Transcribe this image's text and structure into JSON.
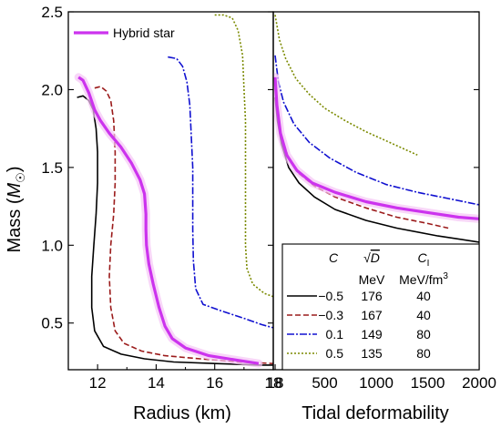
{
  "colors": {
    "hybrid": "#cc33ee",
    "hybrid_band": "#f5c4f5",
    "black": "#000000",
    "red": "#9b1b1b",
    "blue": "#1010d0",
    "olive": "#7b8a00"
  },
  "chart_data": [
    {
      "type": "line",
      "panel": "left",
      "xlabel": "Radius (km)",
      "ylabel_prefix": "Mass (",
      "ylabel_symbol": "M",
      "ylabel_subscript": "☉",
      "ylabel_suffix": ")",
      "xlim": [
        11,
        18
      ],
      "ylim": [
        0.2,
        2.5
      ],
      "xticks": [
        12,
        14,
        16,
        18
      ],
      "yticks": [
        0.5,
        1.0,
        1.5,
        2.0,
        2.5
      ],
      "ytick_labels": [
        "0.5",
        "1.0",
        "1.5",
        "2.0",
        "2.5"
      ],
      "legend": {
        "label": "Hybrid star",
        "position": "top-left"
      },
      "series": [
        {
          "key": "c-05",
          "color": "black",
          "dash": "",
          "width": 1.6,
          "points": [
            [
              11.3,
              1.95
            ],
            [
              11.5,
              1.96
            ],
            [
              11.7,
              1.93
            ],
            [
              11.85,
              1.87
            ],
            [
              11.95,
              1.75
            ],
            [
              12.0,
              1.6
            ],
            [
              12.0,
              1.4
            ],
            [
              11.95,
              1.2
            ],
            [
              11.87,
              1.0
            ],
            [
              11.8,
              0.8
            ],
            [
              11.8,
              0.6
            ],
            [
              11.9,
              0.45
            ],
            [
              12.2,
              0.35
            ],
            [
              12.8,
              0.3
            ],
            [
              13.6,
              0.27
            ],
            [
              14.6,
              0.25
            ],
            [
              16.0,
              0.24
            ],
            [
              17.5,
              0.23
            ],
            [
              18.0,
              0.23
            ]
          ]
        },
        {
          "key": "c-03",
          "color": "red",
          "dash": "6 3",
          "width": 1.6,
          "points": [
            [
              11.9,
              2.01
            ],
            [
              12.1,
              2.02
            ],
            [
              12.3,
              1.99
            ],
            [
              12.45,
              1.93
            ],
            [
              12.55,
              1.8
            ],
            [
              12.6,
              1.6
            ],
            [
              12.6,
              1.4
            ],
            [
              12.55,
              1.2
            ],
            [
              12.45,
              1.0
            ],
            [
              12.4,
              0.8
            ],
            [
              12.45,
              0.6
            ],
            [
              12.6,
              0.45
            ],
            [
              12.9,
              0.37
            ],
            [
              13.5,
              0.32
            ],
            [
              14.3,
              0.29
            ],
            [
              15.5,
              0.27
            ],
            [
              16.8,
              0.25
            ],
            [
              18.0,
              0.24
            ]
          ]
        },
        {
          "key": "c01",
          "color": "blue",
          "dash": "8 2 2 2",
          "width": 1.6,
          "points": [
            [
              14.4,
              2.21
            ],
            [
              14.7,
              2.2
            ],
            [
              14.9,
              2.15
            ],
            [
              15.05,
              2.05
            ],
            [
              15.15,
              1.9
            ],
            [
              15.2,
              1.7
            ],
            [
              15.25,
              1.5
            ],
            [
              15.25,
              1.3
            ],
            [
              15.25,
              1.1
            ],
            [
              15.27,
              0.9
            ],
            [
              15.35,
              0.72
            ],
            [
              15.6,
              0.62
            ],
            [
              16.2,
              0.58
            ],
            [
              17.0,
              0.53
            ],
            [
              17.6,
              0.49
            ],
            [
              18.0,
              0.47
            ]
          ]
        },
        {
          "key": "c05",
          "color": "olive",
          "dash": "2 2",
          "width": 1.6,
          "points": [
            [
              16.0,
              2.48
            ],
            [
              16.3,
              2.48
            ],
            [
              16.6,
              2.46
            ],
            [
              16.8,
              2.38
            ],
            [
              16.95,
              2.22
            ],
            [
              17.0,
              2.0
            ],
            [
              17.05,
              1.8
            ],
            [
              17.05,
              1.6
            ],
            [
              17.05,
              1.4
            ],
            [
              17.05,
              1.2
            ],
            [
              17.05,
              1.0
            ],
            [
              17.1,
              0.85
            ],
            [
              17.3,
              0.75
            ],
            [
              17.7,
              0.69
            ],
            [
              18.0,
              0.67
            ]
          ]
        },
        {
          "key": "hybrid",
          "color": "hybrid",
          "dash": "",
          "width": 3.2,
          "band": true,
          "points": [
            [
              11.35,
              2.08
            ],
            [
              11.5,
              2.06
            ],
            [
              11.7,
              1.98
            ],
            [
              11.9,
              1.87
            ],
            [
              12.1,
              1.8
            ],
            [
              12.4,
              1.72
            ],
            [
              12.8,
              1.63
            ],
            [
              13.15,
              1.53
            ],
            [
              13.45,
              1.42
            ],
            [
              13.6,
              1.33
            ],
            [
              13.65,
              1.2
            ],
            [
              13.65,
              1.1
            ],
            [
              13.67,
              1.0
            ],
            [
              13.75,
              0.88
            ],
            [
              13.9,
              0.75
            ],
            [
              14.1,
              0.6
            ],
            [
              14.3,
              0.48
            ],
            [
              14.55,
              0.4
            ],
            [
              15.0,
              0.34
            ],
            [
              15.8,
              0.29
            ],
            [
              16.8,
              0.26
            ],
            [
              17.5,
              0.24
            ]
          ]
        }
      ]
    },
    {
      "type": "line",
      "panel": "right",
      "xlabel": "Tidal deformability",
      "xlim": [
        0,
        2000
      ],
      "ylim": [
        0.2,
        2.5
      ],
      "xticks": [
        18,
        500,
        1000,
        1500,
        2000
      ],
      "xtick_labels": [
        "18",
        "500",
        "1000",
        "1500",
        "2000"
      ],
      "series": [
        {
          "key": "c-05",
          "color": "black",
          "dash": "",
          "width": 1.6,
          "points": [
            [
              18,
              1.95
            ],
            [
              40,
              1.8
            ],
            [
              80,
              1.65
            ],
            [
              150,
              1.5
            ],
            [
              250,
              1.4
            ],
            [
              400,
              1.31
            ],
            [
              600,
              1.23
            ],
            [
              900,
              1.16
            ],
            [
              1200,
              1.11
            ],
            [
              1600,
              1.06
            ],
            [
              2000,
              1.02
            ]
          ]
        },
        {
          "key": "c-03",
          "color": "red",
          "dash": "6 3",
          "width": 1.6,
          "points": [
            [
              18,
              2.01
            ],
            [
              40,
              1.85
            ],
            [
              80,
              1.7
            ],
            [
              150,
              1.56
            ],
            [
              250,
              1.46
            ],
            [
              400,
              1.38
            ],
            [
              600,
              1.31
            ],
            [
              900,
              1.24
            ],
            [
              1200,
              1.18
            ],
            [
              1500,
              1.14
            ],
            [
              1700,
              1.11
            ]
          ]
        },
        {
          "key": "c01",
          "color": "blue",
          "dash": "8 2 2 2",
          "width": 1.6,
          "points": [
            [
              18,
              2.22
            ],
            [
              50,
              2.05
            ],
            [
              100,
              1.92
            ],
            [
              200,
              1.78
            ],
            [
              350,
              1.66
            ],
            [
              550,
              1.56
            ],
            [
              800,
              1.47
            ],
            [
              1100,
              1.39
            ],
            [
              1400,
              1.34
            ],
            [
              1700,
              1.3
            ],
            [
              2000,
              1.26
            ]
          ]
        },
        {
          "key": "c05",
          "color": "olive",
          "dash": "2 2",
          "width": 1.6,
          "points": [
            [
              18,
              2.48
            ],
            [
              60,
              2.32
            ],
            [
              120,
              2.2
            ],
            [
              220,
              2.07
            ],
            [
              350,
              1.97
            ],
            [
              500,
              1.88
            ],
            [
              700,
              1.8
            ],
            [
              900,
              1.73
            ],
            [
              1100,
              1.67
            ],
            [
              1300,
              1.61
            ],
            [
              1400,
              1.58
            ]
          ]
        },
        {
          "key": "hybrid",
          "color": "hybrid",
          "dash": "",
          "width": 3.2,
          "band": true,
          "points": [
            [
              18,
              2.08
            ],
            [
              35,
              1.9
            ],
            [
              70,
              1.72
            ],
            [
              130,
              1.58
            ],
            [
              230,
              1.48
            ],
            [
              380,
              1.4
            ],
            [
              600,
              1.34
            ],
            [
              900,
              1.28
            ],
            [
              1200,
              1.24
            ],
            [
              1500,
              1.21
            ],
            [
              1800,
              1.18
            ],
            [
              2000,
              1.17
            ]
          ]
        }
      ]
    }
  ],
  "table": {
    "headers": {
      "c": "C",
      "d_prefix": "√",
      "d_var": "D",
      "cl": "C",
      "cl_sub": "I"
    },
    "units": {
      "d": "MeV",
      "cl": "MeV/fm",
      "cl_sup": "3"
    },
    "rows": [
      {
        "key": "c-05",
        "c": "−0.5",
        "d": "176",
        "cl": "40"
      },
      {
        "key": "c-03",
        "c": "−0.3",
        "d": "167",
        "cl": "40"
      },
      {
        "key": "c01",
        "c": "0.1",
        "d": "149",
        "cl": "80"
      },
      {
        "key": "c05",
        "c": "0.5",
        "d": "135",
        "cl": "80"
      }
    ]
  }
}
